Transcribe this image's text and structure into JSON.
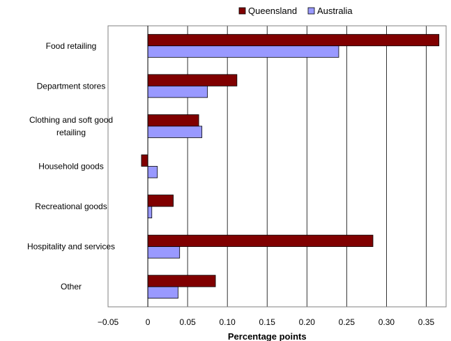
{
  "chart_data": {
    "type": "bar",
    "orientation": "horizontal",
    "categories": [
      [
        "Food retailing"
      ],
      [
        "Department stores"
      ],
      [
        "Clothing and soft good",
        "retailing"
      ],
      [
        "Household goods"
      ],
      [
        "Recreational goods"
      ],
      [
        "Hospitality and services"
      ],
      [
        "Other"
      ]
    ],
    "series": [
      {
        "name": "Queensland",
        "color": "#800000",
        "values": [
          0.366,
          0.112,
          0.064,
          -0.008,
          0.032,
          0.283,
          0.085
        ]
      },
      {
        "name": "Australia",
        "color": "#9999ff",
        "values": [
          0.24,
          0.075,
          0.068,
          0.012,
          0.005,
          0.04,
          0.038
        ]
      }
    ],
    "xlabel": "Percentage points",
    "xlim": [
      -0.05,
      0.375
    ],
    "xticks": [
      -0.05,
      0,
      0.05,
      0.1,
      0.15,
      0.2,
      0.25,
      0.3,
      0.35
    ],
    "xtick_labels": [
      "−0.05",
      "0",
      "0.05",
      "0.10",
      "0.15",
      "0.20",
      "0.25",
      "0.30",
      "0.35"
    ],
    "grid": "vertical",
    "legend_position": "top"
  }
}
